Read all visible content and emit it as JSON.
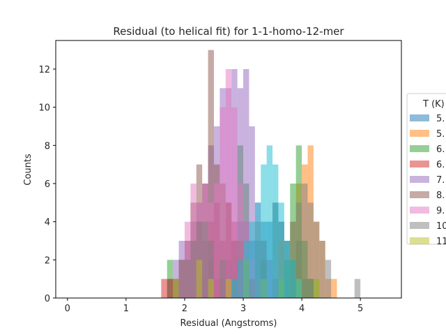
{
  "chart_data": {
    "type": "bar",
    "title": "Residual (to helical fit) for 1-1-homo-12-mer",
    "xlabel": "Residual (Angstroms)",
    "ylabel": "Counts",
    "xlim": [
      -0.2,
      5.7
    ],
    "ylim": [
      0,
      13.5
    ],
    "xticks": [
      "0",
      "1",
      "2",
      "3",
      "4",
      "5"
    ],
    "yticks": [
      "0",
      "2",
      "4",
      "6",
      "8",
      "10",
      "12"
    ],
    "bin_width": 0.1,
    "bar_opacity": 0.5,
    "grid": false,
    "legend": {
      "title": "T (K)",
      "placement": "right-outside"
    },
    "series": [
      {
        "name": "5.",
        "color": "#1f77b4",
        "bins": [
          [
            2.2,
            1
          ],
          [
            2.3,
            1
          ],
          [
            2.4,
            2
          ],
          [
            2.5,
            1
          ],
          [
            2.6,
            1
          ],
          [
            2.7,
            2
          ],
          [
            2.8,
            3
          ],
          [
            2.9,
            4
          ],
          [
            3.0,
            4
          ],
          [
            3.1,
            3
          ],
          [
            3.2,
            3
          ],
          [
            3.3,
            4
          ],
          [
            3.4,
            4
          ],
          [
            3.5,
            5
          ],
          [
            3.6,
            4
          ],
          [
            3.7,
            3
          ],
          [
            3.8,
            2
          ],
          [
            3.9,
            3
          ],
          [
            4.0,
            1
          ],
          [
            4.1,
            1
          ]
        ]
      },
      {
        "name": "5.",
        "color": "#ff7f0e",
        "bins": [
          [
            2.5,
            1
          ],
          [
            2.9,
            2
          ],
          [
            3.3,
            2
          ],
          [
            3.6,
            3
          ],
          [
            3.8,
            4
          ],
          [
            3.9,
            6
          ],
          [
            4.0,
            7
          ],
          [
            4.1,
            8
          ],
          [
            4.2,
            4
          ],
          [
            4.3,
            3
          ],
          [
            4.4,
            1
          ],
          [
            4.5,
            1
          ]
        ]
      },
      {
        "name": "6.",
        "color": "#2ca02c",
        "bins": [
          [
            1.7,
            2
          ],
          [
            1.8,
            1
          ],
          [
            2.4,
            3
          ],
          [
            2.9,
            8
          ],
          [
            3.0,
            6
          ],
          [
            3.3,
            2
          ],
          [
            3.6,
            1
          ],
          [
            3.7,
            2
          ],
          [
            3.8,
            6
          ],
          [
            3.9,
            8
          ],
          [
            4.0,
            3
          ],
          [
            4.1,
            1
          ],
          [
            4.2,
            1
          ]
        ]
      },
      {
        "name": "6.",
        "color": "#d62728",
        "bins": [
          [
            1.6,
            1
          ],
          [
            1.7,
            1
          ],
          [
            1.8,
            1
          ],
          [
            1.9,
            2
          ],
          [
            2.0,
            2
          ],
          [
            2.1,
            3
          ],
          [
            2.2,
            4
          ],
          [
            2.3,
            3
          ],
          [
            2.4,
            4
          ],
          [
            2.5,
            5
          ],
          [
            2.6,
            3
          ],
          [
            2.7,
            5
          ],
          [
            2.8,
            4
          ],
          [
            2.9,
            2
          ],
          [
            3.0,
            2
          ],
          [
            3.1,
            1
          ]
        ]
      },
      {
        "name": "7.",
        "color": "#9467bd",
        "bins": [
          [
            1.8,
            2
          ],
          [
            1.9,
            3
          ],
          [
            2.0,
            3
          ],
          [
            2.1,
            4
          ],
          [
            2.2,
            5
          ],
          [
            2.3,
            6
          ],
          [
            2.4,
            8
          ],
          [
            2.5,
            9
          ],
          [
            2.6,
            11
          ],
          [
            2.7,
            11
          ],
          [
            2.8,
            12
          ],
          [
            2.9,
            11
          ],
          [
            3.0,
            12
          ],
          [
            3.1,
            9
          ],
          [
            3.2,
            5
          ],
          [
            3.3,
            3
          ],
          [
            3.4,
            2
          ],
          [
            3.5,
            1
          ]
        ]
      },
      {
        "name": "8.",
        "color": "#8c564b",
        "bins": [
          [
            1.7,
            1
          ],
          [
            1.8,
            1
          ],
          [
            1.9,
            2
          ],
          [
            2.0,
            3
          ],
          [
            2.1,
            5
          ],
          [
            2.2,
            7
          ],
          [
            2.3,
            6
          ],
          [
            2.4,
            13
          ],
          [
            2.5,
            7
          ],
          [
            2.6,
            6
          ],
          [
            2.7,
            5
          ],
          [
            2.8,
            3
          ],
          [
            2.9,
            3
          ],
          [
            3.0,
            2
          ],
          [
            3.1,
            1
          ]
        ]
      },
      {
        "name": "9.",
        "color": "#e377c2",
        "bins": [
          [
            1.9,
            2
          ],
          [
            2.0,
            4
          ],
          [
            2.1,
            6
          ],
          [
            2.2,
            5
          ],
          [
            2.3,
            6
          ],
          [
            2.4,
            5
          ],
          [
            2.5,
            6
          ],
          [
            2.6,
            10
          ],
          [
            2.7,
            12
          ],
          [
            2.8,
            10
          ],
          [
            2.9,
            6
          ],
          [
            3.0,
            4
          ],
          [
            3.1,
            2
          ],
          [
            3.2,
            1
          ]
        ]
      },
      {
        "name": "10",
        "color": "#7f7f7f",
        "bins": [
          [
            1.8,
            1
          ],
          [
            1.9,
            2
          ],
          [
            2.0,
            2
          ],
          [
            2.1,
            3
          ],
          [
            2.2,
            4
          ],
          [
            2.3,
            4
          ],
          [
            2.4,
            3
          ],
          [
            2.6,
            2
          ],
          [
            2.8,
            1
          ],
          [
            3.0,
            2
          ],
          [
            3.2,
            4
          ],
          [
            3.3,
            3
          ],
          [
            3.5,
            5
          ],
          [
            3.6,
            4
          ],
          [
            3.7,
            3
          ],
          [
            3.8,
            4
          ],
          [
            3.9,
            5
          ],
          [
            4.0,
            6
          ],
          [
            4.1,
            5
          ],
          [
            4.2,
            4
          ],
          [
            4.3,
            3
          ],
          [
            4.4,
            2
          ],
          [
            4.9,
            1
          ]
        ]
      },
      {
        "name": "11",
        "color": "#bcbd22",
        "bins": [
          [
            1.8,
            1
          ],
          [
            2.2,
            2
          ],
          [
            2.4,
            1
          ],
          [
            2.7,
            1
          ],
          [
            3.0,
            2
          ],
          [
            3.3,
            1
          ],
          [
            3.6,
            1
          ],
          [
            3.9,
            1
          ],
          [
            4.2,
            1
          ]
        ]
      },
      {
        "name": "",
        "color": "#17becf",
        "bins": [
          [
            2.8,
            1
          ],
          [
            2.9,
            2
          ],
          [
            3.0,
            3
          ],
          [
            3.1,
            4
          ],
          [
            3.2,
            5
          ],
          [
            3.3,
            7
          ],
          [
            3.4,
            8
          ],
          [
            3.5,
            7
          ],
          [
            3.6,
            5
          ],
          [
            3.7,
            3
          ],
          [
            3.8,
            2
          ],
          [
            3.9,
            1
          ]
        ]
      }
    ]
  }
}
